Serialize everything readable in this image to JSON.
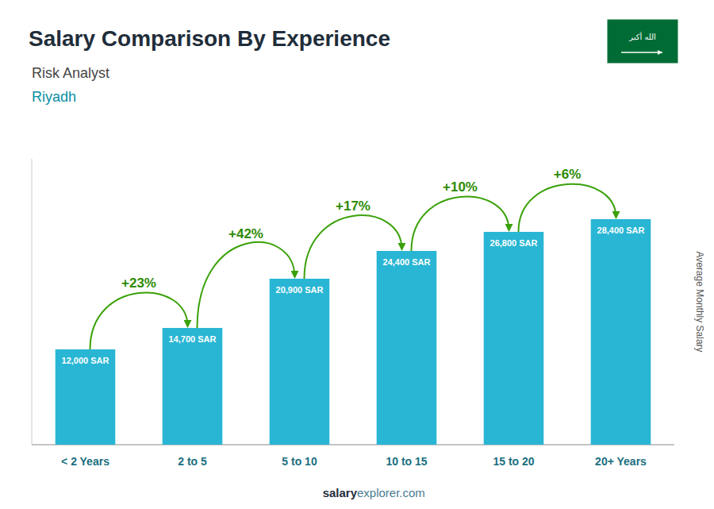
{
  "chart_data": {
    "type": "bar",
    "title": "Salary Comparison By Experience",
    "subtitle": [
      "Risk Analyst",
      "Riyadh"
    ],
    "ylabel": "Average Monthly Salary",
    "footer": [
      "salary",
      "explorer.com"
    ],
    "badge": "الله أكبر",
    "categories": [
      "< 2 Years",
      "2 to 5",
      "5 to 10",
      "10 to 15",
      "15 to 20",
      "20+ Years"
    ],
    "values": [
      12000,
      14700,
      20900,
      24400,
      26800,
      28400
    ],
    "value_labels": [
      "12,000 SAR",
      "14,700 SAR",
      "20,900 SAR",
      "24,400 SAR",
      "26,800 SAR",
      "28,400 SAR"
    ],
    "annotations": [
      "+23%",
      "+42%",
      "+17%",
      "+10%",
      "+6%"
    ],
    "color": "#29b6d4",
    "ylim": [
      0,
      36000
    ],
    "grid": false,
    "data_labels": true,
    "tick_labels": "x"
  }
}
